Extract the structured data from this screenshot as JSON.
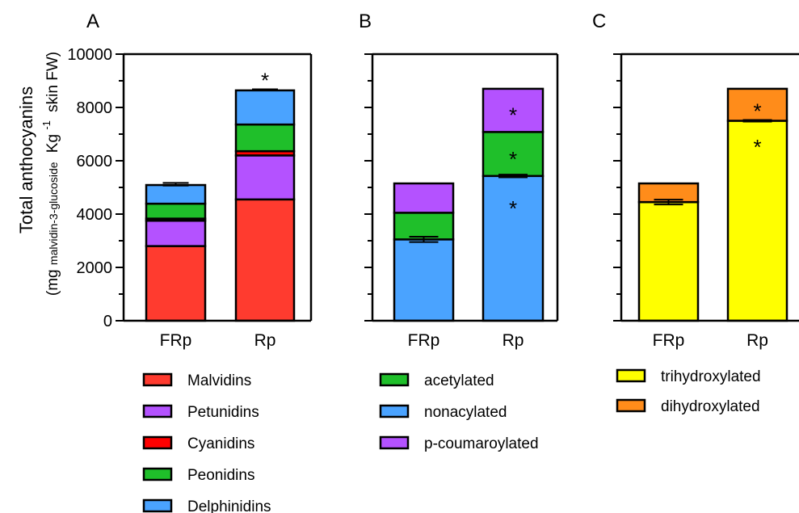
{
  "figure": {
    "ylabel_main": "Total anthocyanins",
    "ylabel_sub_prefix": "(mg",
    "ylabel_sub_small": "malvidin-3-glucoside",
    "ylabel_sub_kg": "Kg",
    "ylabel_sub_exp": "-1",
    "ylabel_sub_suffix": "skin FW)"
  },
  "chart_data": [
    {
      "type": "bar",
      "stacked": true,
      "panel_label": "A",
      "categories": [
        "FRp",
        "Rp"
      ],
      "ylim": [
        0,
        10000
      ],
      "yticks": [
        "0",
        "2000",
        "4000",
        "6000",
        "8000",
        "10000"
      ],
      "series": [
        {
          "name": "Malvidins",
          "color": "#ff3b2f",
          "values": [
            2800,
            4550
          ]
        },
        {
          "name": "Petunidins",
          "color": "#b452ff",
          "values": [
            950,
            1650
          ]
        },
        {
          "name": "Cyanidins",
          "color": "#ff0000",
          "values": [
            80,
            160
          ]
        },
        {
          "name": "Peonidins",
          "color": "#1fbf2a",
          "values": [
            560,
            1000
          ]
        },
        {
          "name": "Delphinidins",
          "color": "#4aa3ff",
          "values": [
            700,
            1280
          ]
        }
      ],
      "error_tops": [
        [
          5120,
          100
        ],
        [
          8660,
          40
        ]
      ],
      "error_segments": [],
      "significance": [
        {
          "category": "Rp",
          "y": 9100,
          "text": "*",
          "color": "#000000"
        }
      ],
      "legend_order": [
        0,
        1,
        2,
        3,
        4
      ]
    },
    {
      "type": "bar",
      "stacked": true,
      "panel_label": "B",
      "categories": [
        "FRp",
        "Rp"
      ],
      "ylim": [
        0,
        10000
      ],
      "yticks": [],
      "series": [
        {
          "name": "nonacylated",
          "color": "#4aa3ff",
          "values": [
            3050,
            5430
          ]
        },
        {
          "name": "acetylated",
          "color": "#1fbf2a",
          "values": [
            1000,
            1650
          ]
        },
        {
          "name": "p-coumaroylated",
          "color": "#b452ff",
          "values": [
            1100,
            1620
          ]
        }
      ],
      "error_tops": [],
      "error_segments": [
        [
          0,
          3050,
          200
        ],
        [
          1,
          5430,
          100
        ]
      ],
      "significance": [
        {
          "category": "Rp",
          "y": 4300,
          "text": "*",
          "color": "#000000"
        },
        {
          "category": "Rp",
          "y": 6150,
          "text": "*",
          "color": "#000000"
        },
        {
          "category": "Rp",
          "y": 7800,
          "text": "*",
          "color": "#000000"
        }
      ],
      "legend_order": [
        1,
        0,
        2
      ]
    },
    {
      "type": "bar",
      "stacked": true,
      "panel_label": "C",
      "categories": [
        "FRp",
        "Rp"
      ],
      "ylim": [
        0,
        10000
      ],
      "yticks": [],
      "series": [
        {
          "name": "trihydroxylated",
          "color": "#ffff00",
          "values": [
            4450,
            7500
          ]
        },
        {
          "name": "dihydroxylated",
          "color": "#ff8c1a",
          "values": [
            700,
            1200
          ]
        }
      ],
      "error_tops": [],
      "error_segments": [
        [
          0,
          4450,
          180
        ],
        [
          1,
          7500,
          60
        ]
      ],
      "significance": [
        {
          "category": "Rp",
          "y": 6600,
          "text": "*",
          "color": "#000000"
        },
        {
          "category": "Rp",
          "y": 7950,
          "text": "*",
          "color": "#000000"
        }
      ],
      "legend_order": [
        0,
        1
      ]
    }
  ]
}
